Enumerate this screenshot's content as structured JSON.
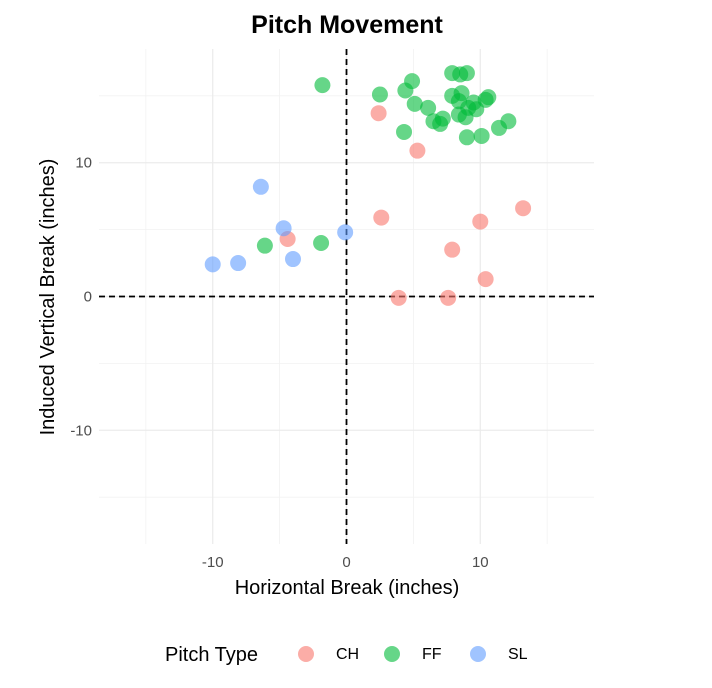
{
  "chart_data": {
    "type": "scatter",
    "title": "Pitch Movement",
    "xlabel": "Horizontal Break (inches)",
    "ylabel": "Induced Vertical Break (inches)",
    "xlim": [
      -18.5,
      18.5
    ],
    "ylim": [
      -18.5,
      18.5
    ],
    "x_ticks": [
      -10,
      0,
      10
    ],
    "y_ticks": [
      -10,
      0,
      10
    ],
    "grid": true,
    "reference_lines": {
      "x": 0,
      "y": 0,
      "style": "dashed"
    },
    "legend": {
      "title": "Pitch Type",
      "position": "bottom"
    },
    "series": [
      {
        "name": "CH",
        "color": "#F8766D",
        "points": [
          [
            2.4,
            13.7
          ],
          [
            5.3,
            10.9
          ],
          [
            2.6,
            5.9
          ],
          [
            -4.4,
            4.3
          ],
          [
            7.9,
            3.5
          ],
          [
            10.0,
            5.6
          ],
          [
            13.2,
            6.6
          ],
          [
            10.4,
            1.3
          ],
          [
            3.9,
            -0.1
          ],
          [
            7.6,
            -0.1
          ]
        ]
      },
      {
        "name": "FF",
        "color": "#00BA38",
        "points": [
          [
            -1.8,
            15.8
          ],
          [
            2.5,
            15.1
          ],
          [
            4.4,
            15.4
          ],
          [
            4.9,
            16.1
          ],
          [
            5.1,
            14.4
          ],
          [
            6.1,
            14.1
          ],
          [
            4.3,
            12.3
          ],
          [
            6.5,
            13.1
          ],
          [
            7.0,
            12.9
          ],
          [
            7.2,
            13.3
          ],
          [
            7.9,
            16.7
          ],
          [
            8.5,
            16.6
          ],
          [
            9.0,
            16.7
          ],
          [
            7.9,
            15.0
          ],
          [
            8.4,
            14.6
          ],
          [
            8.6,
            15.2
          ],
          [
            9.1,
            14.1
          ],
          [
            9.5,
            14.5
          ],
          [
            9.7,
            14.0
          ],
          [
            10.4,
            14.7
          ],
          [
            10.6,
            14.9
          ],
          [
            8.4,
            13.6
          ],
          [
            8.9,
            13.4
          ],
          [
            9.0,
            11.9
          ],
          [
            10.1,
            12.0
          ],
          [
            11.4,
            12.6
          ],
          [
            12.1,
            13.1
          ],
          [
            -6.1,
            3.8
          ],
          [
            -1.9,
            4.0
          ]
        ]
      },
      {
        "name": "SL",
        "color": "#619CFF",
        "points": [
          [
            -6.4,
            8.2
          ],
          [
            -4.7,
            5.1
          ],
          [
            -4.0,
            2.8
          ],
          [
            -8.1,
            2.5
          ],
          [
            -10.0,
            2.4
          ],
          [
            -0.1,
            4.8
          ]
        ]
      }
    ]
  }
}
